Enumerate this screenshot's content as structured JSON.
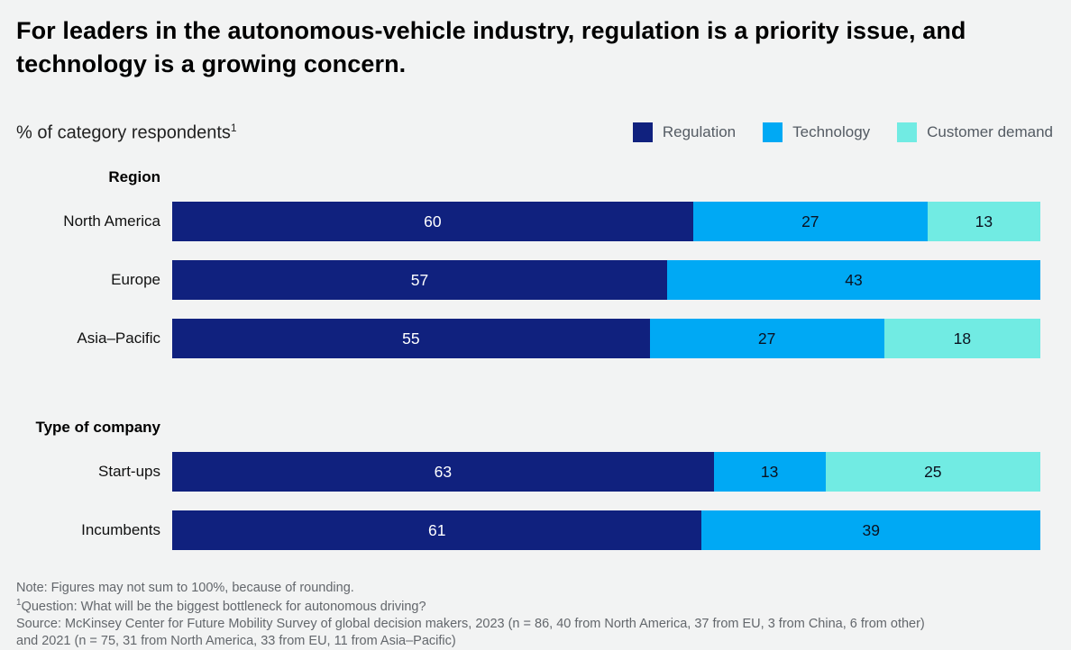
{
  "title": "For leaders in the autonomous-vehicle industry, regulation is a priority issue, and technology is a growing concern.",
  "subtitle": "% of category respondents",
  "subtitle_sup": "1",
  "legend": [
    {
      "label": "Regulation",
      "color": "#10217e",
      "value_text_color": "#ffffff"
    },
    {
      "label": "Technology",
      "color": "#00a9f4",
      "value_text_color": "#0b1220"
    },
    {
      "label": "Customer demand",
      "color": "#71ebe3",
      "value_text_color": "#0b1220"
    }
  ],
  "chart_data": {
    "type": "bar",
    "orientation": "horizontal",
    "stacked": true,
    "unit": "% of category respondents",
    "xlim": [
      0,
      100
    ],
    "series_names": [
      "Regulation",
      "Technology",
      "Customer demand"
    ],
    "legend_position": "top-right",
    "grid": false,
    "groups": [
      {
        "header": "Region",
        "rows": [
          {
            "label": "North America",
            "values": [
              60,
              27,
              13
            ]
          },
          {
            "label": "Europe",
            "values": [
              57,
              43,
              0
            ]
          },
          {
            "label": "Asia–Pacific",
            "values": [
              55,
              27,
              18
            ]
          }
        ]
      },
      {
        "header": "Type of company",
        "rows": [
          {
            "label": "Start-ups",
            "values": [
              63,
              13,
              25
            ]
          },
          {
            "label": "Incumbents",
            "values": [
              61,
              39,
              0
            ]
          }
        ]
      }
    ]
  },
  "footnotes": {
    "note": "Note: Figures may not sum to 100%, because of rounding.",
    "question_sup": "1",
    "question": "Question: What will be the biggest bottleneck for autonomous driving?",
    "source_lines": [
      "Source: McKinsey Center for Future Mobility Survey of global decision makers, 2023 (n = 86, 40 from North America, 37 from EU, 3 from China, 6 from other)",
      "and 2021 (n = 75, 31 from North America, 33 from EU, 11 from Asia–Pacific)"
    ]
  }
}
